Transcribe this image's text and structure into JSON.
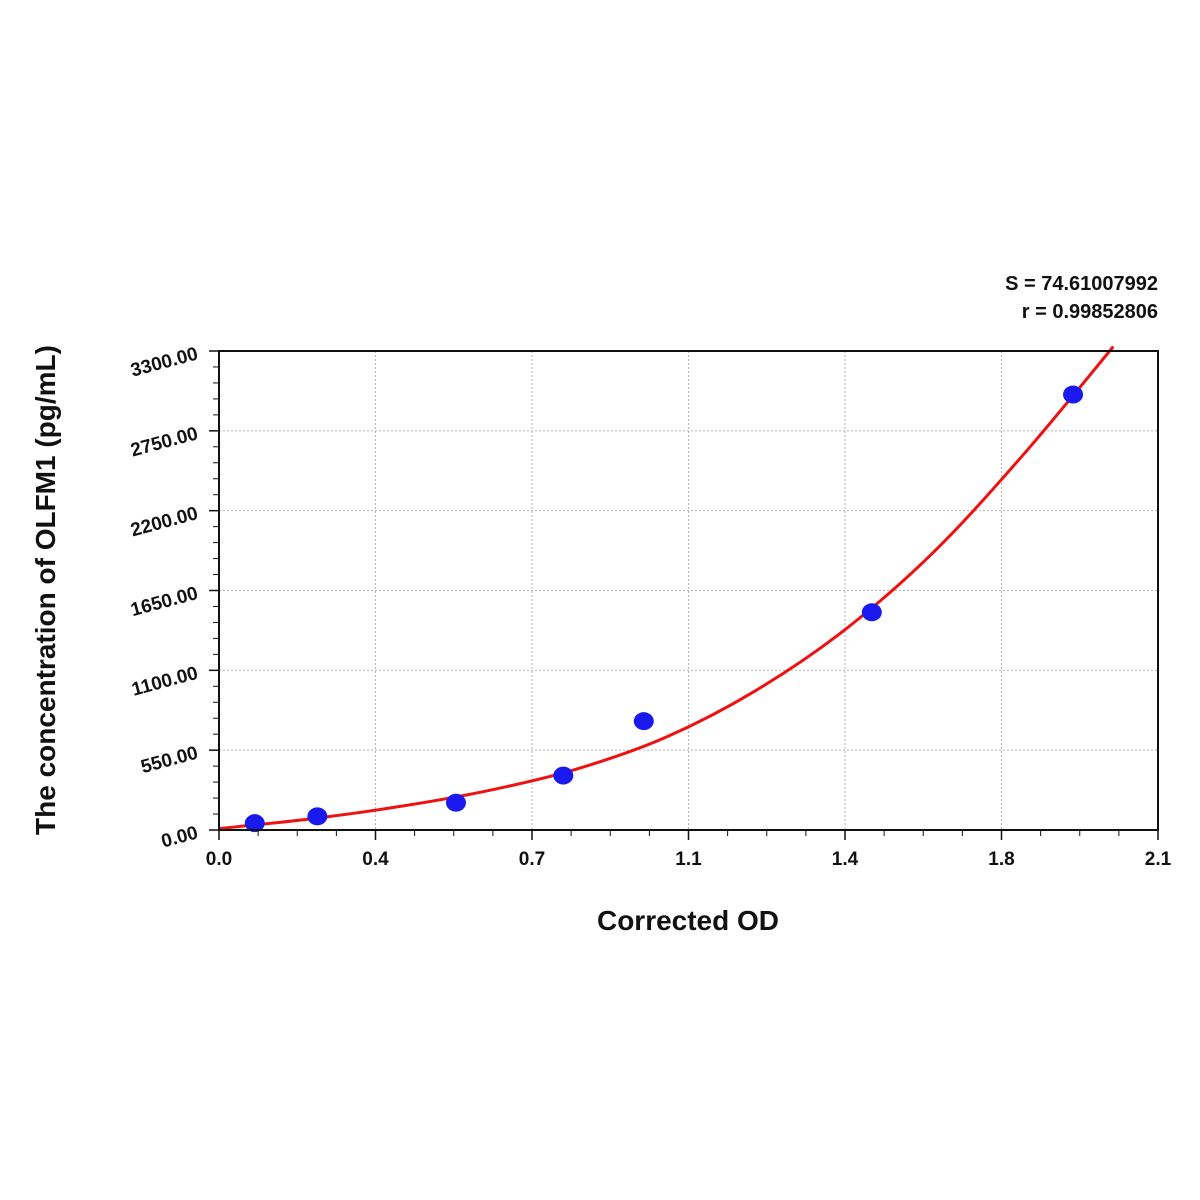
{
  "chart_data": {
    "type": "scatter",
    "title": "",
    "xlabel": "Corrected OD",
    "ylabel": "The concentration of OLFM1 (pg/mL)",
    "x_ticks": [
      "0.0",
      "0.4",
      "0.7",
      "1.1",
      "1.4",
      "1.8",
      "2.1"
    ],
    "y_ticks": [
      "0.00",
      "550.00",
      "1100.00",
      "1650.00",
      "2200.00",
      "2750.00",
      "3300.00"
    ],
    "xlim": [
      0,
      2.1
    ],
    "ylim": [
      0,
      3300
    ],
    "grid": true,
    "stats": {
      "s_line": "S = 74.61007992",
      "r_line": "r = 0.99852806"
    },
    "series": [
      {
        "type": "scatter",
        "color": "#1a1aee",
        "x": [
          0.08,
          0.22,
          0.53,
          0.77,
          0.95,
          1.46,
          1.91
        ],
        "y": [
          47,
          94,
          188,
          375,
          750,
          1500,
          3000
        ]
      },
      {
        "type": "line",
        "color": "#ee1111",
        "x": [
          0.0,
          0.2,
          0.4,
          0.6,
          0.8,
          1.0,
          1.2,
          1.4,
          1.6,
          1.8,
          2.0
        ],
        "y": [
          10,
          75,
          160,
          270,
          420,
          640,
          960,
          1380,
          1920,
          2590,
          3330
        ]
      }
    ]
  }
}
